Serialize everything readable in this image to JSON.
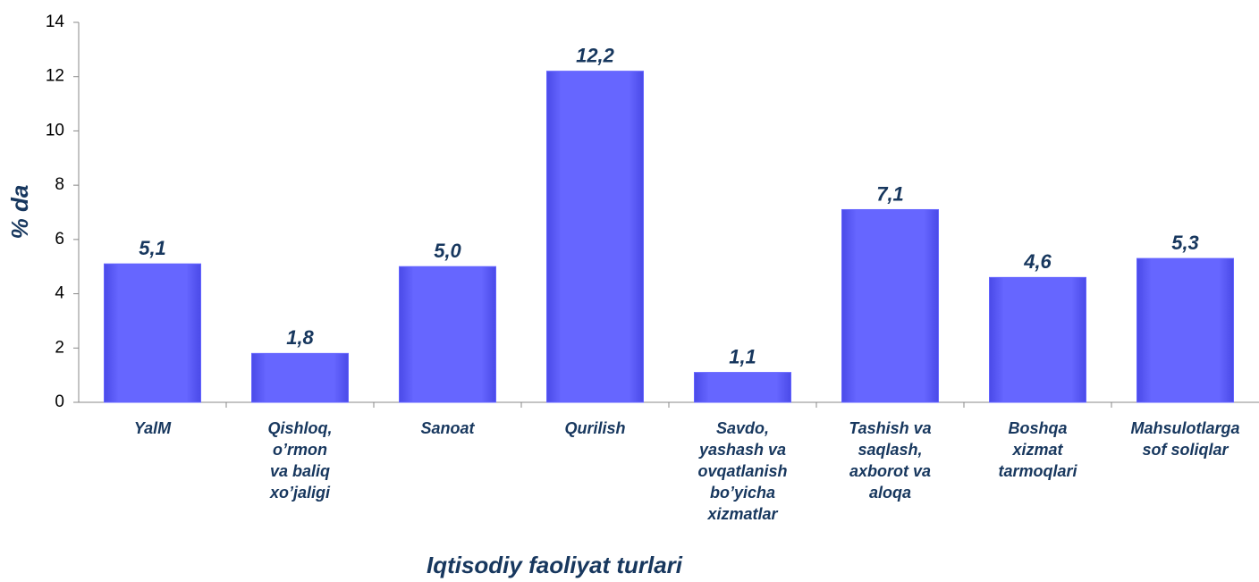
{
  "chart_data": {
    "type": "bar",
    "y_label": "% da",
    "x_label": "Iqtisodiy faoliyat turlari",
    "categories": [
      "YalM",
      "Qishloq,\no’rmon\nva baliq\nxo’jaligi",
      "Sanoat",
      "Qurilish",
      "Savdo,\nyashash va\novqatlanish\nbo’yicha\nxizmatlar",
      "Tashish va\nsaqlash,\naxborot va\naloqa",
      "Boshqa\nxizmat\ntarmoqlari",
      "Mahsulotlarga\nsof soliqlar"
    ],
    "values": [
      5.1,
      1.8,
      5.0,
      12.2,
      1.1,
      7.1,
      4.6,
      5.3
    ],
    "value_labels": [
      "5,1",
      "1,8",
      "5,0",
      "12,2",
      "1,1",
      "7,1",
      "4,6",
      "5,3"
    ],
    "color": "#6464ff",
    "ylim": [
      0,
      14
    ],
    "yticks": [
      0,
      2,
      4,
      6,
      8,
      10,
      12,
      14
    ],
    "grid": false
  }
}
